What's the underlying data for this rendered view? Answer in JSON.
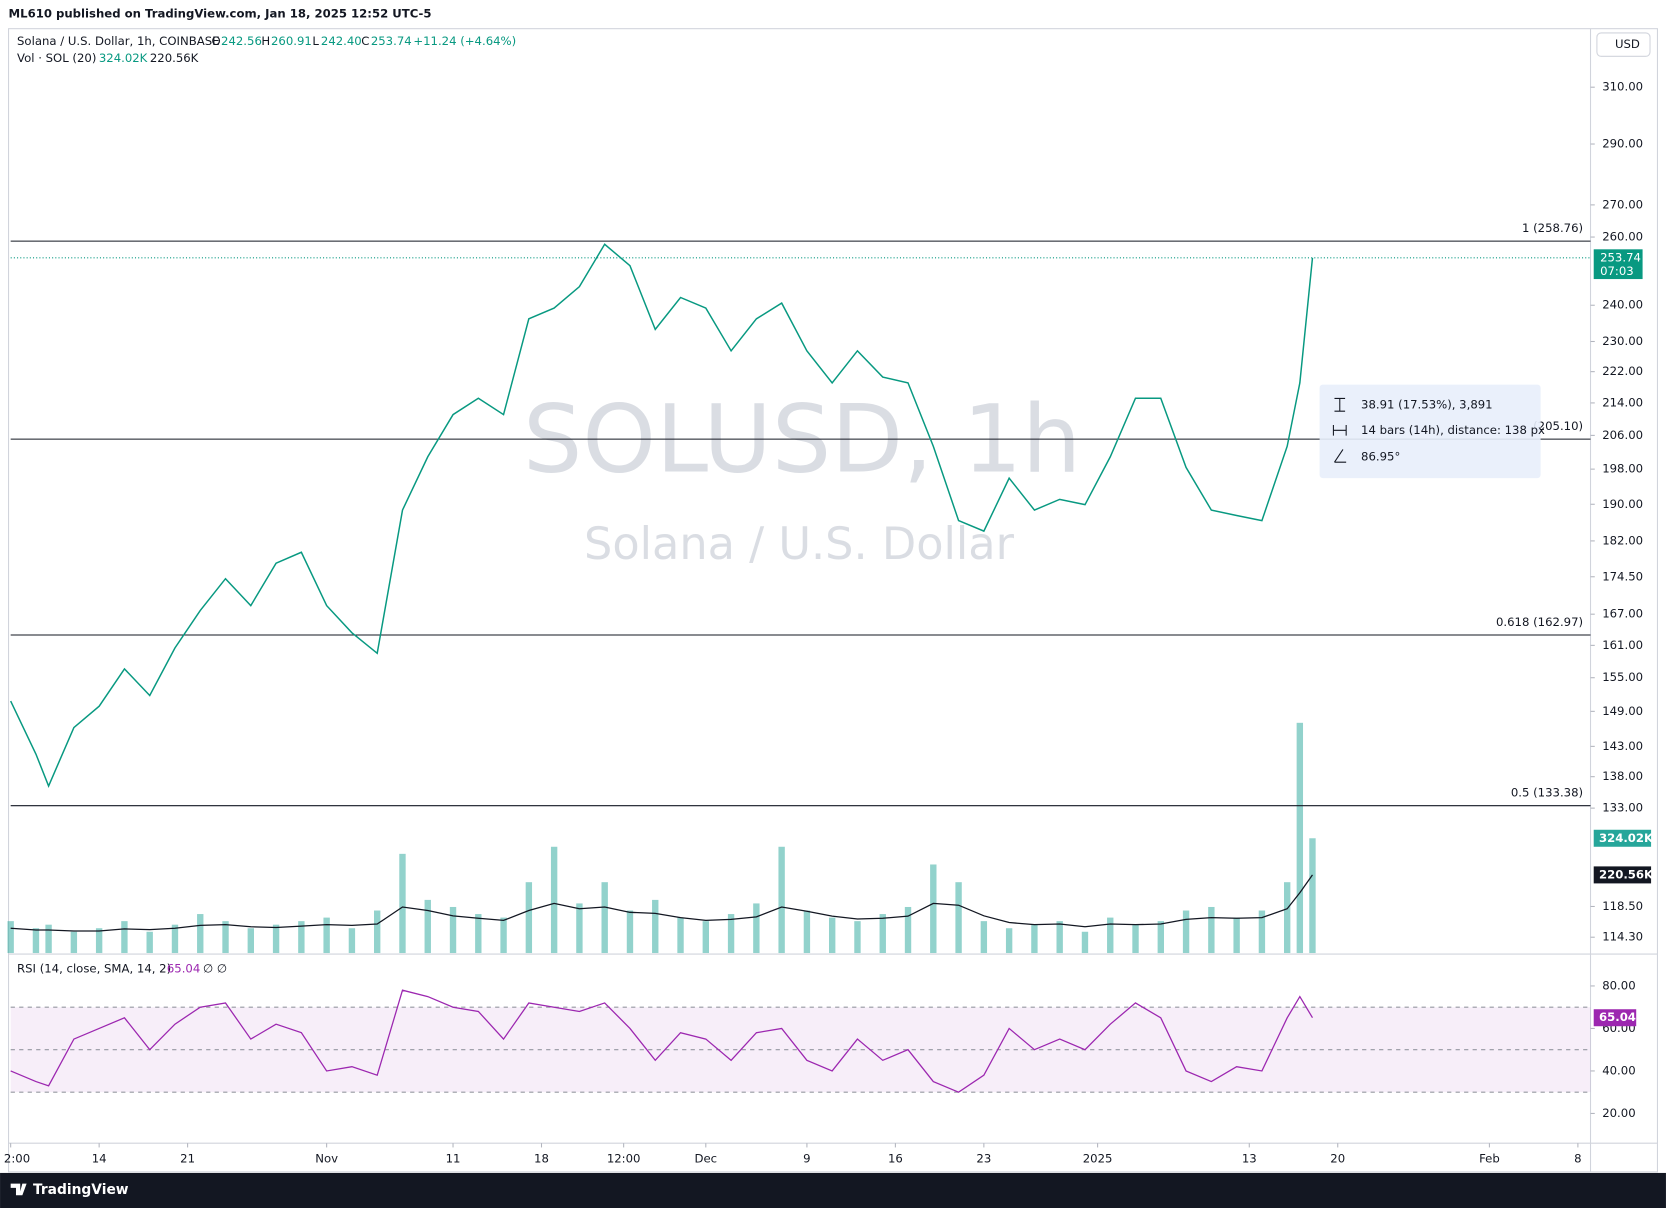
{
  "header": {
    "publisher": "ML610 published on TradingView.com, Jan 18, 2025 12:52 UTC-5"
  },
  "legend": {
    "symbol": "Solana / U.S. Dollar, 1h, COINBASE",
    "ohlc": [
      {
        "key": "O",
        "value": "242.56"
      },
      {
        "key": "H",
        "value": "260.91"
      },
      {
        "key": "L",
        "value": "242.40"
      },
      {
        "key": "C",
        "value": "253.74"
      }
    ],
    "change": "+11.24 (+4.64%)"
  },
  "watermark": {
    "symbol": "SOLUSD, 1h",
    "description": "Solana / U.S. Dollar"
  },
  "currency_button": "USD",
  "countdown": "07:03",
  "measure": {
    "price_range": "38.91 (17.53%), 3,891",
    "bars": "14 bars (14h), distance: 138 px",
    "angle": "86.95°"
  },
  "footer": {
    "brand": "TradingView"
  },
  "chart_data": [
    {
      "type": "line",
      "scale": "log",
      "color": "#089981",
      "level_color": "#131722",
      "grid": false,
      "x": [
        "2024-10-07",
        "2024-10-09",
        "2024-10-10",
        "2024-10-12",
        "2024-10-14",
        "2024-10-16",
        "2024-10-18",
        "2024-10-20",
        "2024-10-22",
        "2024-10-24",
        "2024-10-26",
        "2024-10-28",
        "2024-10-30",
        "2024-11-01",
        "2024-11-03",
        "2024-11-05",
        "2024-11-07",
        "2024-11-09",
        "2024-11-11",
        "2024-11-13",
        "2024-11-15",
        "2024-11-17",
        "2024-11-19",
        "2024-11-21",
        "2024-11-23",
        "2024-11-25",
        "2024-11-27",
        "2024-11-29",
        "2024-12-01",
        "2024-12-03",
        "2024-12-05",
        "2024-12-07",
        "2024-12-09",
        "2024-12-11",
        "2024-12-13",
        "2024-12-15",
        "2024-12-17",
        "2024-12-19",
        "2024-12-21",
        "2024-12-23",
        "2024-12-25",
        "2024-12-27",
        "2024-12-29",
        "2024-12-31",
        "2025-01-02",
        "2025-01-04",
        "2025-01-06",
        "2025-01-08",
        "2025-01-10",
        "2025-01-12",
        "2025-01-14",
        "2025-01-16",
        "2025-01-17",
        "2025-01-18"
      ],
      "values": [
        150.8,
        141.7,
        136.5,
        146.2,
        149.9,
        156.6,
        151.8,
        160.5,
        167.7,
        174.1,
        168.7,
        177.3,
        179.6,
        168.7,
        163.4,
        159.5,
        188.7,
        200.9,
        211.1,
        215.2,
        211.1,
        236.2,
        239.2,
        245.3,
        257.8,
        251.4,
        233.3,
        242.2,
        239.2,
        227.5,
        236.2,
        240.6,
        227.5,
        219.1,
        227.5,
        220.6,
        219.1,
        203.4,
        186.4,
        184.1,
        195.9,
        188.7,
        191.1,
        189.9,
        200.9,
        215.2,
        215.2,
        198.4,
        188.7,
        187.5,
        186.4,
        203.4,
        219.1,
        253.74
      ],
      "xlim": [
        "2024-10-07",
        "2025-02-09"
      ],
      "xticks": [
        {
          "value": "2024-10-07",
          "label": "2:00"
        },
        {
          "value": "2024-10-14",
          "label": "14"
        },
        {
          "value": "2024-10-21",
          "label": "21"
        },
        {
          "value": "2024-11-01",
          "label": "Nov"
        },
        {
          "value": "2024-11-11",
          "label": "11"
        },
        {
          "value": "2024-11-18",
          "label": "18"
        },
        {
          "value": "2024-11-24T12:00",
          "label": "12:00"
        },
        {
          "value": "2024-12-01",
          "label": "Dec"
        },
        {
          "value": "2024-12-09",
          "label": "9"
        },
        {
          "value": "2024-12-16",
          "label": "16"
        },
        {
          "value": "2024-12-23",
          "label": "23"
        },
        {
          "value": "2025-01-01",
          "label": "2025"
        },
        {
          "value": "2025-01-13",
          "label": "13"
        },
        {
          "value": "2025-01-20",
          "label": "20"
        },
        {
          "value": "2025-02-01",
          "label": "Feb"
        },
        {
          "value": "2025-02-08",
          "label": "8"
        }
      ],
      "ylim": [
        112.2,
        330.8
      ],
      "yticks": [
        {
          "value": 310,
          "label": "310.00"
        },
        {
          "value": 290,
          "label": "290.00"
        },
        {
          "value": 270,
          "label": "270.00"
        },
        {
          "value": 260,
          "label": "260.00"
        },
        {
          "value": 240,
          "label": "240.00"
        },
        {
          "value": 230,
          "label": "230.00"
        },
        {
          "value": 222,
          "label": "222.00"
        },
        {
          "value": 214,
          "label": "214.00"
        },
        {
          "value": 206,
          "label": "206.00"
        },
        {
          "value": 198,
          "label": "198.00"
        },
        {
          "value": 190,
          "label": "190.00"
        },
        {
          "value": 182,
          "label": "182.00"
        },
        {
          "value": 174.5,
          "label": "174.50"
        },
        {
          "value": 167,
          "label": "167.00"
        },
        {
          "value": 161,
          "label": "161.00"
        },
        {
          "value": 155,
          "label": "155.00"
        },
        {
          "value": 149,
          "label": "149.00"
        },
        {
          "value": 143,
          "label": "143.00"
        },
        {
          "value": 138,
          "label": "138.00"
        },
        {
          "value": 133,
          "label": "133.00"
        },
        {
          "value": 118.5,
          "label": "118.50"
        },
        {
          "value": 114.3,
          "label": "114.30"
        }
      ],
      "levels": [
        {
          "value": 258.76,
          "label": "1 (258.76)"
        },
        {
          "value": 205.1,
          "label": "(205.10)"
        },
        {
          "value": 162.97,
          "label": "0.618 (162.97)"
        },
        {
          "value": 133.38,
          "label": "0.5 (133.38)"
        }
      ]
    },
    {
      "type": "bar",
      "title": "Vol · SOL (20)",
      "ylim": [
        0,
        2601000
      ],
      "series": [
        {
          "type": "bar",
          "color": "#26a69a",
          "values": [
            90000,
            70000,
            80000,
            60000,
            70000,
            90000,
            60000,
            80000,
            110000,
            90000,
            70000,
            80000,
            90000,
            100000,
            70000,
            120000,
            280000,
            150000,
            130000,
            110000,
            100000,
            200000,
            300000,
            140000,
            200000,
            120000,
            150000,
            100000,
            90000,
            110000,
            140000,
            300000,
            120000,
            100000,
            90000,
            110000,
            130000,
            250000,
            200000,
            90000,
            70000,
            80000,
            90000,
            60000,
            100000,
            80000,
            90000,
            120000,
            130000,
            100000,
            120000,
            200000,
            650000,
            324020
          ],
          "value_labels": [
            null,
            null,
            null,
            null,
            null,
            null,
            null,
            null,
            null,
            null,
            null,
            null,
            null,
            null,
            null,
            null,
            null,
            null,
            null,
            null,
            null,
            null,
            null,
            null,
            null,
            null,
            null,
            null,
            null,
            null,
            null,
            null,
            null,
            null,
            null,
            null,
            null,
            null,
            null,
            null,
            null,
            null,
            null,
            null,
            null,
            null,
            null,
            null,
            null,
            null,
            null,
            null,
            null,
            "324.02K"
          ]
        },
        {
          "type": "line",
          "color": "#131722",
          "values": [
            70000,
            65000,
            65000,
            62000,
            62000,
            68000,
            66000,
            70000,
            78000,
            80000,
            74000,
            72000,
            76000,
            80000,
            78000,
            82000,
            130000,
            120000,
            105000,
            98000,
            92000,
            120000,
            140000,
            125000,
            130000,
            115000,
            112000,
            100000,
            92000,
            95000,
            102000,
            130000,
            118000,
            104000,
            96000,
            98000,
            104000,
            140000,
            135000,
            105000,
            86000,
            80000,
            82000,
            74000,
            82000,
            80000,
            82000,
            95000,
            100000,
            98000,
            100000,
            125000,
            170000,
            220560
          ],
          "value_labels": [
            null,
            null,
            null,
            null,
            null,
            null,
            null,
            null,
            null,
            null,
            null,
            null,
            null,
            null,
            null,
            null,
            null,
            null,
            null,
            null,
            null,
            null,
            null,
            null,
            null,
            null,
            null,
            null,
            null,
            null,
            null,
            null,
            null,
            null,
            null,
            null,
            null,
            null,
            null,
            null,
            null,
            null,
            null,
            null,
            null,
            null,
            null,
            null,
            null,
            null,
            null,
            null,
            null,
            "220.56K"
          ]
        }
      ]
    },
    {
      "type": "line",
      "title": "RSI (14, close, SMA, 14, 2)",
      "suffix": "∅ ∅",
      "color": "#9c27b0",
      "values": [
        40,
        35,
        33,
        55,
        60,
        65,
        50,
        62,
        70,
        72,
        55,
        62,
        58,
        40,
        42,
        38,
        78,
        75,
        70,
        68,
        55,
        72,
        70,
        68,
        72,
        60,
        45,
        58,
        55,
        45,
        58,
        60,
        45,
        40,
        55,
        45,
        50,
        35,
        30,
        38,
        60,
        50,
        55,
        50,
        62,
        72,
        65,
        40,
        35,
        42,
        40,
        65,
        75,
        65.04
      ],
      "ylim": [
        6.5,
        94
      ],
      "yticks": [
        {
          "value": 20,
          "label": "20.00"
        },
        {
          "value": 40,
          "label": "40.00"
        },
        {
          "value": 60,
          "label": "60.00"
        },
        {
          "value": 80,
          "label": "80.00"
        }
      ],
      "levels": [
        30,
        50,
        70
      ]
    }
  ]
}
